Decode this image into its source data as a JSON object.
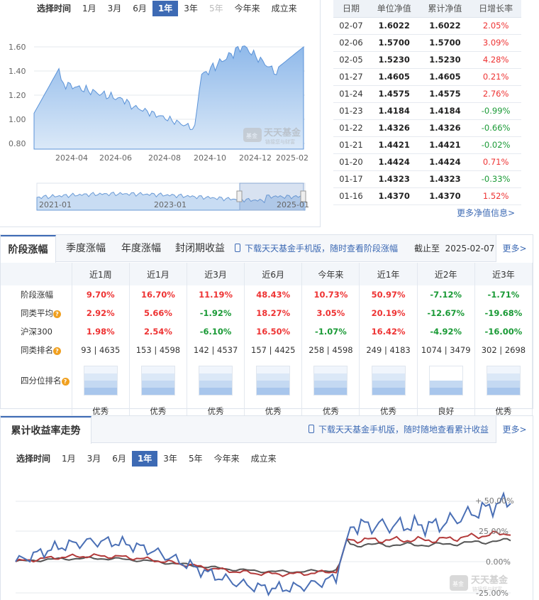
{
  "nav_chart": {
    "time_label": "选择时间",
    "ranges": [
      "1月",
      "3月",
      "6月",
      "1年",
      "3年",
      "5年",
      "今年来",
      "成立来"
    ],
    "active_range": "1年",
    "disabled_range": "5年",
    "y_ticks": [
      "1.60",
      "1.40",
      "1.20",
      "1.00",
      "0.80"
    ],
    "x_ticks": [
      "2024-04",
      "2024-06",
      "2024-08",
      "2024-10",
      "2024-12",
      "2025-02"
    ],
    "mini_ticks": [
      "2021-01",
      "2023-01",
      "2025-01"
    ],
    "watermark": "天天基金",
    "watermark_sub": "链接您与财富",
    "accent": "#3d6ab4",
    "area_color": "#a9cbef"
  },
  "nav_table": {
    "headers": [
      "日期",
      "单位净值",
      "累计净值",
      "日增长率"
    ],
    "rows": [
      [
        "02-07",
        "1.6022",
        "1.6022",
        "2.05%"
      ],
      [
        "02-06",
        "1.5700",
        "1.5700",
        "3.09%"
      ],
      [
        "02-05",
        "1.5230",
        "1.5230",
        "4.28%"
      ],
      [
        "01-27",
        "1.4605",
        "1.4605",
        "0.21%"
      ],
      [
        "01-24",
        "1.4575",
        "1.4575",
        "2.76%"
      ],
      [
        "01-23",
        "1.4184",
        "1.4184",
        "-0.99%"
      ],
      [
        "01-22",
        "1.4326",
        "1.4326",
        "-0.66%"
      ],
      [
        "01-21",
        "1.4421",
        "1.4421",
        "-0.02%"
      ],
      [
        "01-20",
        "1.4424",
        "1.4424",
        "0.71%"
      ],
      [
        "01-17",
        "1.4323",
        "1.4323",
        "-0.33%"
      ],
      [
        "01-16",
        "1.4370",
        "1.4370",
        "1.52%"
      ]
    ],
    "more": "更多净值信息>"
  },
  "phase": {
    "tabs": [
      "阶段涨幅",
      "季度涨幅",
      "年度涨幅",
      "封闭期收益"
    ],
    "download": "下载天天基金手机版，随时查看阶段涨幅",
    "cutoff_label": "截止至",
    "cutoff_date": "2025-02-07",
    "more": "更多>",
    "columns": [
      "近1周",
      "近1月",
      "近3月",
      "近6月",
      "今年来",
      "近1年",
      "近2年",
      "近3年"
    ],
    "rows": [
      {
        "label": "阶段涨幅",
        "values": [
          "9.70%",
          "16.70%",
          "11.19%",
          "48.43%",
          "10.73%",
          "50.97%",
          "-7.12%",
          "-1.71%"
        ]
      },
      {
        "label": "同类平均",
        "values": [
          "2.92%",
          "5.66%",
          "-1.92%",
          "18.27%",
          "3.05%",
          "20.19%",
          "-12.67%",
          "-19.68%"
        ]
      },
      {
        "label": "沪深300",
        "values": [
          "1.98%",
          "2.54%",
          "-6.10%",
          "16.50%",
          "-1.07%",
          "16.42%",
          "-4.92%",
          "-16.00%"
        ]
      }
    ],
    "rank_label": "同类排名",
    "ranks": [
      "93 | 4635",
      "153 | 4598",
      "142 | 4537",
      "157 | 4425",
      "258 | 4598",
      "249 | 4183",
      "1074 | 3479",
      "302 | 2698"
    ],
    "quartile_label": "四分位排名",
    "quartile_levels": [
      4,
      4,
      4,
      4,
      4,
      4,
      2,
      4
    ],
    "quartiles": [
      "优秀",
      "优秀",
      "优秀",
      "优秀",
      "优秀",
      "优秀",
      "良好",
      "优秀"
    ]
  },
  "cumulative": {
    "title": "累计收益率走势",
    "download": "下载天天基金手机版，随时随地查看累计收益",
    "more": "更多>",
    "time_label": "选择时间",
    "ranges": [
      "1月",
      "3月",
      "6月",
      "1年",
      "3年",
      "5年",
      "今年来",
      "成立来"
    ],
    "active_range": "1年",
    "y_ticks": [
      "50.00%",
      "25.00%",
      "0.00%",
      "-25.00%"
    ],
    "watermark": "天天基金",
    "watermark_sub": "链接您与财富",
    "series_colors": [
      "#4a6fb5",
      "#b33a3a",
      "#555555"
    ]
  }
}
